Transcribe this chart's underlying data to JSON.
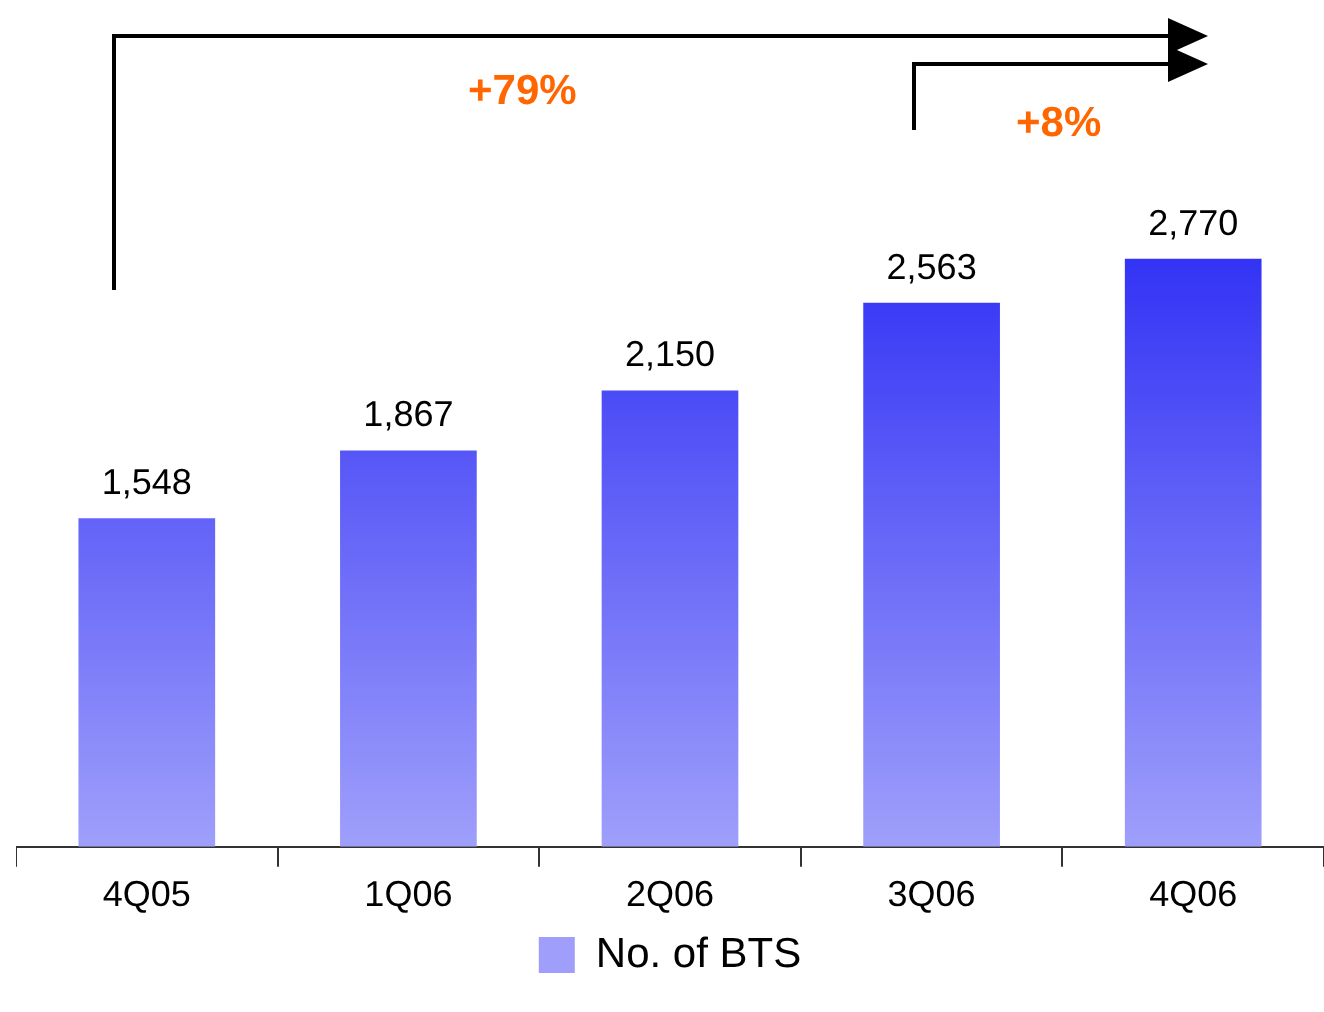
{
  "chart_data": {
    "type": "bar",
    "categories": [
      "4Q05",
      "1Q06",
      "2Q06",
      "3Q06",
      "4Q06"
    ],
    "series": [
      {
        "name": "No. of BTS",
        "color": "#2a2af5",
        "values": [
          1548,
          1867,
          2150,
          2563,
          2770
        ],
        "value_labels": [
          "1,548",
          "1,867",
          "2,150",
          "2,563",
          "2,770"
        ]
      }
    ],
    "legend": "bottom",
    "annotations": [
      "+79%",
      "+8%"
    ]
  }
}
